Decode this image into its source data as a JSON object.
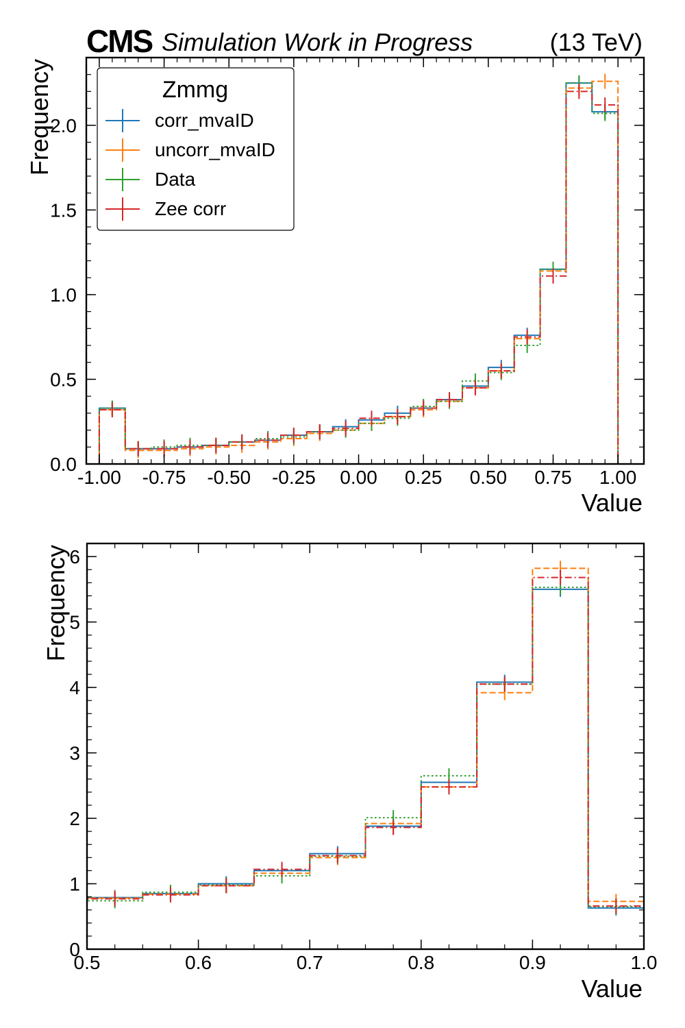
{
  "header": {
    "cms": "CMS",
    "status": "Simulation Work in Progress",
    "energy": "(13 TeV)"
  },
  "colors": {
    "corr_mvaID": "#1f77b4",
    "uncorr_mvaID": "#ff7f0e",
    "Data": "#2ca02c",
    "Zee corr": "#d62728"
  },
  "chart_data": [
    {
      "type": "histogram",
      "xlabel": "Value",
      "ylabel": "Frequency",
      "xlim": [
        -1.05,
        1.1
      ],
      "ylim": [
        0,
        2.4
      ],
      "xticks": [
        "-1.00",
        "-0.75",
        "-0.50",
        "-0.25",
        "0.00",
        "0.25",
        "0.50",
        "0.75",
        "1.00"
      ],
      "yticks": [
        "0.0",
        "0.5",
        "1.0",
        "1.5",
        "2.0"
      ],
      "legend": {
        "title": "Zmmg",
        "position": "top-left"
      },
      "bin_edges": [
        -1.0,
        -0.9,
        -0.8,
        -0.7,
        -0.6,
        -0.5,
        -0.4,
        -0.3,
        -0.2,
        -0.1,
        0.0,
        0.1,
        0.2,
        0.3,
        0.4,
        0.5,
        0.6,
        0.7,
        0.8,
        0.9,
        1.0
      ],
      "series": [
        {
          "name": "corr_mvaID",
          "style": "solid",
          "values": [
            0.33,
            0.09,
            0.09,
            0.1,
            0.11,
            0.13,
            0.14,
            0.17,
            0.19,
            0.22,
            0.26,
            0.3,
            0.33,
            0.38,
            0.46,
            0.57,
            0.76,
            1.15,
            2.25,
            2.08
          ]
        },
        {
          "name": "uncorr_mvaID",
          "style": "dashed",
          "values": [
            0.32,
            0.08,
            0.08,
            0.09,
            0.1,
            0.11,
            0.13,
            0.15,
            0.18,
            0.2,
            0.24,
            0.28,
            0.32,
            0.37,
            0.45,
            0.55,
            0.74,
            1.14,
            2.22,
            2.26
          ]
        },
        {
          "name": "Data",
          "style": "dotted",
          "values": [
            0.33,
            0.09,
            0.1,
            0.11,
            0.11,
            0.13,
            0.15,
            0.16,
            0.19,
            0.2,
            0.24,
            0.27,
            0.34,
            0.37,
            0.49,
            0.54,
            0.7,
            1.15,
            2.25,
            2.07
          ]
        },
        {
          "name": "Zee corr",
          "style": "dashdot",
          "values": [
            0.32,
            0.09,
            0.09,
            0.1,
            0.11,
            0.13,
            0.14,
            0.17,
            0.19,
            0.21,
            0.27,
            0.28,
            0.33,
            0.38,
            0.45,
            0.55,
            0.75,
            1.11,
            2.2,
            2.12
          ]
        }
      ]
    },
    {
      "type": "histogram",
      "xlabel": "Value",
      "ylabel": "Frequency",
      "xlim": [
        0.5,
        1.0
      ],
      "ylim": [
        0,
        6.2
      ],
      "xticks": [
        "0.5",
        "0.6",
        "0.7",
        "0.8",
        "0.9",
        "1.0"
      ],
      "yticks": [
        "0",
        "1",
        "2",
        "3",
        "4",
        "5",
        "6"
      ],
      "bin_edges": [
        0.5,
        0.55,
        0.6,
        0.65,
        0.7,
        0.75,
        0.8,
        0.85,
        0.9,
        0.95,
        1.0
      ],
      "series": [
        {
          "name": "corr_mvaID",
          "style": "solid",
          "values": [
            0.79,
            0.85,
            1.0,
            1.2,
            1.46,
            1.88,
            2.55,
            4.08,
            5.5,
            0.63
          ]
        },
        {
          "name": "uncorr_mvaID",
          "style": "dashed",
          "values": [
            0.78,
            0.84,
            0.97,
            1.16,
            1.4,
            1.92,
            2.48,
            3.92,
            5.82,
            0.73
          ]
        },
        {
          "name": "Data",
          "style": "dotted",
          "values": [
            0.74,
            0.87,
            0.98,
            1.12,
            1.42,
            2.01,
            2.65,
            4.05,
            5.53,
            0.65
          ]
        },
        {
          "name": "Zee corr",
          "style": "dashdot",
          "values": [
            0.77,
            0.83,
            0.97,
            1.22,
            1.43,
            1.86,
            2.48,
            4.05,
            5.68,
            0.66
          ]
        }
      ]
    }
  ]
}
